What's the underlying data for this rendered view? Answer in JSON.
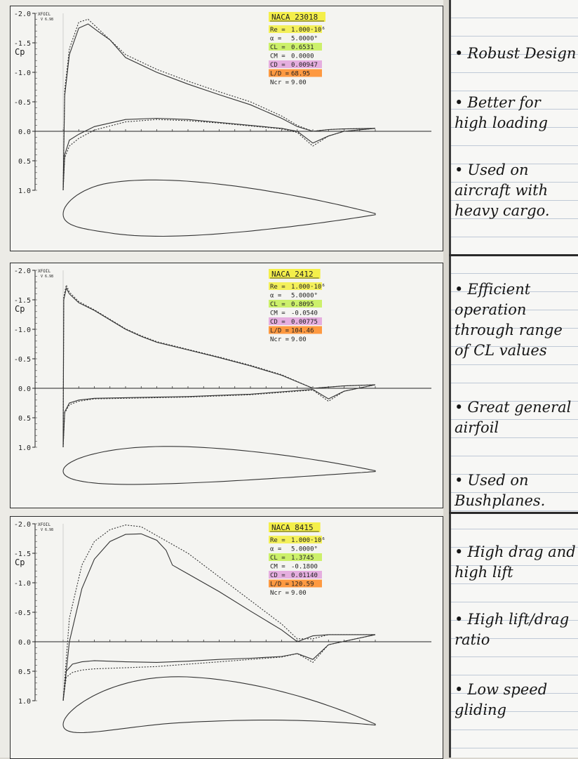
{
  "chart_data": [
    {
      "type": "line",
      "program": "XFOIL",
      "version": "V 6.98",
      "ylabel": "Cp",
      "ytick_labels": [
        "-2.0",
        "-1.5",
        "-1.0",
        "-0.5",
        "0.0",
        "0.5",
        "1.0"
      ],
      "yticks": [
        -2.0,
        -1.5,
        -1.0,
        -0.5,
        0.0,
        0.5,
        1.0
      ],
      "ylim": [
        1.0,
        -2.0
      ],
      "xlim": [
        0,
        1
      ],
      "info": {
        "title": "NACA 23018",
        "lines": [
          {
            "label": "Re =",
            "value": "1.000·10⁶"
          },
          {
            "label": "α =",
            "value": "5.0000°"
          },
          {
            "label": "CL =",
            "value": "0.6531"
          },
          {
            "label": "CM =",
            "value": "0.0000"
          },
          {
            "label": "CD =",
            "value": "0.00947"
          },
          {
            "label": "L/D =",
            "value": "68.95"
          },
          {
            "label": "Ncr =",
            "value": "9.00"
          }
        ],
        "highlights": [
          "#f4ef4a",
          "",
          "#c8ef5c",
          "",
          "#e3a6dd",
          "#ff8f2e",
          ""
        ]
      },
      "airfoil": {
        "thickness": 0.18,
        "camber": 0.02,
        "camber_pos": 0.15
      },
      "series": [
        {
          "style": "solid",
          "x": [
            0,
            0.005,
            0.02,
            0.05,
            0.08,
            0.11,
            0.15,
            0.2,
            0.3,
            0.4,
            0.5,
            0.6,
            0.7,
            0.75,
            0.8,
            0.85,
            0.9,
            1.0
          ],
          "y": [
            1.0,
            -0.6,
            -1.3,
            -1.75,
            -1.82,
            -1.7,
            -1.55,
            -1.25,
            -1.0,
            -0.8,
            -0.62,
            -0.45,
            -0.22,
            -0.08,
            0.0,
            -0.03,
            -0.04,
            -0.05
          ]
        },
        {
          "style": "dashed",
          "x": [
            0,
            0.005,
            0.02,
            0.05,
            0.08,
            0.11,
            0.15,
            0.2,
            0.3,
            0.4,
            0.5,
            0.6,
            0.7,
            0.75,
            0.8,
            0.85,
            0.9,
            1.0
          ],
          "y": [
            1.0,
            -0.7,
            -1.4,
            -1.85,
            -1.9,
            -1.75,
            -1.55,
            -1.3,
            -1.05,
            -0.85,
            -0.67,
            -0.5,
            -0.26,
            -0.1,
            0.0,
            -0.03,
            -0.04,
            -0.05
          ]
        },
        {
          "style": "solid",
          "x": [
            0,
            0.005,
            0.02,
            0.05,
            0.1,
            0.2,
            0.3,
            0.4,
            0.5,
            0.6,
            0.7,
            0.75,
            0.8,
            0.85,
            0.9,
            1.0
          ],
          "y": [
            1.0,
            0.4,
            0.15,
            0.05,
            -0.08,
            -0.2,
            -0.22,
            -0.2,
            -0.15,
            -0.1,
            -0.05,
            0.0,
            0.2,
            0.08,
            0.0,
            -0.05
          ]
        },
        {
          "style": "dashed",
          "x": [
            0,
            0.005,
            0.02,
            0.05,
            0.1,
            0.2,
            0.3,
            0.4,
            0.5,
            0.6,
            0.7,
            0.75,
            0.8,
            0.85,
            0.9,
            1.0
          ],
          "y": [
            1.0,
            0.45,
            0.25,
            0.12,
            -0.02,
            -0.16,
            -0.2,
            -0.18,
            -0.14,
            -0.09,
            -0.04,
            0.02,
            0.25,
            0.08,
            0.0,
            -0.05
          ]
        }
      ]
    },
    {
      "type": "line",
      "program": "XFOIL",
      "version": "V 6.98",
      "ylabel": "Cp",
      "ytick_labels": [
        "-2.0",
        "-1.5",
        "-1.0",
        "-0.5",
        "0.0",
        "0.5",
        "1.0"
      ],
      "yticks": [
        -2.0,
        -1.5,
        -1.0,
        -0.5,
        0.0,
        0.5,
        1.0
      ],
      "ylim": [
        1.0,
        -2.0
      ],
      "xlim": [
        0,
        1
      ],
      "info": {
        "title": "NACA 2412",
        "lines": [
          {
            "label": "Re =",
            "value": "1.000·10⁶"
          },
          {
            "label": "α =",
            "value": "5.0000°"
          },
          {
            "label": "CL =",
            "value": "0.8095"
          },
          {
            "label": "CM =",
            "value": "-0.0540"
          },
          {
            "label": "CD =",
            "value": "0.00775"
          },
          {
            "label": "L/D =",
            "value": "104.46"
          },
          {
            "label": "Ncr =",
            "value": "9.00"
          }
        ],
        "highlights": [
          "#f4ef4a",
          "",
          "#c8ef5c",
          "",
          "#e3a6dd",
          "#ff8f2e",
          ""
        ]
      },
      "airfoil": {
        "thickness": 0.12,
        "camber": 0.02,
        "camber_pos": 0.4
      },
      "series": [
        {
          "style": "solid",
          "x": [
            0,
            0.002,
            0.01,
            0.02,
            0.05,
            0.1,
            0.2,
            0.25,
            0.3,
            0.4,
            0.5,
            0.6,
            0.7,
            0.8,
            0.85,
            0.9,
            1.0
          ],
          "y": [
            1.0,
            -1.5,
            -1.7,
            -1.6,
            -1.45,
            -1.32,
            -1.0,
            -0.88,
            -0.78,
            -0.65,
            -0.52,
            -0.38,
            -0.22,
            0.0,
            -0.02,
            -0.04,
            -0.06
          ]
        },
        {
          "style": "dashed",
          "x": [
            0,
            0.002,
            0.01,
            0.02,
            0.05,
            0.1,
            0.2,
            0.25,
            0.3,
            0.4,
            0.5,
            0.6,
            0.7,
            0.8,
            0.85,
            0.9,
            1.0
          ],
          "y": [
            1.0,
            -1.55,
            -1.75,
            -1.63,
            -1.47,
            -1.33,
            -1.01,
            -0.89,
            -0.79,
            -0.66,
            -0.53,
            -0.39,
            -0.23,
            0.0,
            -0.02,
            -0.04,
            -0.06
          ]
        },
        {
          "style": "solid",
          "x": [
            0,
            0.005,
            0.02,
            0.05,
            0.1,
            0.2,
            0.3,
            0.4,
            0.5,
            0.6,
            0.7,
            0.8,
            0.85,
            0.9,
            1.0
          ],
          "y": [
            1.0,
            0.4,
            0.25,
            0.2,
            0.17,
            0.16,
            0.15,
            0.14,
            0.12,
            0.1,
            0.06,
            0.02,
            0.18,
            0.05,
            -0.06
          ]
        },
        {
          "style": "dashed",
          "x": [
            0,
            0.005,
            0.02,
            0.05,
            0.1,
            0.2,
            0.3,
            0.4,
            0.5,
            0.6,
            0.7,
            0.8,
            0.85,
            0.9,
            1.0
          ],
          "y": [
            1.0,
            0.42,
            0.28,
            0.22,
            0.18,
            0.17,
            0.16,
            0.15,
            0.13,
            0.11,
            0.07,
            0.03,
            0.22,
            0.05,
            -0.06
          ]
        }
      ]
    },
    {
      "type": "line",
      "program": "XFOIL",
      "version": "V 6.98",
      "ylabel": "Cp",
      "ytick_labels": [
        "-2.0",
        "-1.5",
        "-1.0",
        "-0.5",
        "0.0",
        "0.5",
        "1.0"
      ],
      "yticks": [
        -2.0,
        -1.5,
        -1.0,
        -0.5,
        0.0,
        0.5,
        1.0
      ],
      "ylim": [
        1.0,
        -2.0
      ],
      "xlim": [
        0,
        1
      ],
      "info": {
        "title": "NACA 8415",
        "lines": [
          {
            "label": "Re =",
            "value": "1.000·10⁶"
          },
          {
            "label": "α =",
            "value": "5.0000°"
          },
          {
            "label": "CL =",
            "value": "1.3745"
          },
          {
            "label": "CM =",
            "value": "-0.1800"
          },
          {
            "label": "CD =",
            "value": "0.01140"
          },
          {
            "label": "L/D =",
            "value": "120.59"
          },
          {
            "label": "Ncr =",
            "value": "9.00"
          }
        ],
        "highlights": [
          "#f4ef4a",
          "",
          "#c8ef5c",
          "",
          "#e3a6dd",
          "#ff8f2e",
          ""
        ]
      },
      "airfoil": {
        "thickness": 0.15,
        "camber": 0.08,
        "camber_pos": 0.4
      },
      "series": [
        {
          "style": "solid",
          "x": [
            0,
            0.02,
            0.06,
            0.1,
            0.15,
            0.2,
            0.25,
            0.3,
            0.33,
            0.35,
            0.4,
            0.5,
            0.6,
            0.7,
            0.75,
            0.8,
            0.85,
            1.0
          ],
          "y": [
            1.0,
            0.0,
            -0.9,
            -1.4,
            -1.7,
            -1.82,
            -1.83,
            -1.72,
            -1.55,
            -1.3,
            -1.15,
            -0.85,
            -0.52,
            -0.2,
            0.0,
            -0.1,
            -0.12,
            -0.12
          ]
        },
        {
          "style": "dashed",
          "x": [
            0,
            0.02,
            0.06,
            0.1,
            0.15,
            0.2,
            0.25,
            0.3,
            0.4,
            0.5,
            0.6,
            0.7,
            0.75,
            0.8,
            0.85,
            1.0
          ],
          "y": [
            1.0,
            -0.4,
            -1.3,
            -1.7,
            -1.9,
            -1.98,
            -1.95,
            -1.8,
            -1.5,
            -1.1,
            -0.7,
            -0.3,
            -0.05,
            -0.05,
            -0.12,
            -0.12
          ]
        },
        {
          "style": "solid",
          "x": [
            0,
            0.01,
            0.03,
            0.06,
            0.1,
            0.2,
            0.3,
            0.4,
            0.5,
            0.6,
            0.7,
            0.75,
            0.8,
            0.85,
            1.0
          ],
          "y": [
            1.0,
            0.5,
            0.38,
            0.34,
            0.32,
            0.34,
            0.35,
            0.33,
            0.3,
            0.28,
            0.25,
            0.2,
            0.3,
            0.05,
            -0.12
          ]
        },
        {
          "style": "dashed",
          "x": [
            0,
            0.01,
            0.03,
            0.06,
            0.1,
            0.2,
            0.3,
            0.4,
            0.5,
            0.6,
            0.7,
            0.75,
            0.8,
            0.85,
            1.0
          ],
          "y": [
            1.0,
            0.6,
            0.52,
            0.48,
            0.46,
            0.44,
            0.42,
            0.38,
            0.34,
            0.3,
            0.26,
            0.2,
            0.35,
            0.05,
            -0.12
          ]
        }
      ]
    }
  ],
  "notes": [
    {
      "bullets": [
        "Robust Design",
        "Better for high loading",
        "Used on aircraft with heavy cargo."
      ]
    },
    {
      "bullets": [
        "Efficient operation through range of CL values",
        "Great general airfoil",
        "Used on Bushplanes."
      ]
    },
    {
      "bullets": [
        "High drag and high lift",
        "High lift/drag ratio",
        "Low speed gliding"
      ]
    }
  ],
  "note_bullet": "•"
}
